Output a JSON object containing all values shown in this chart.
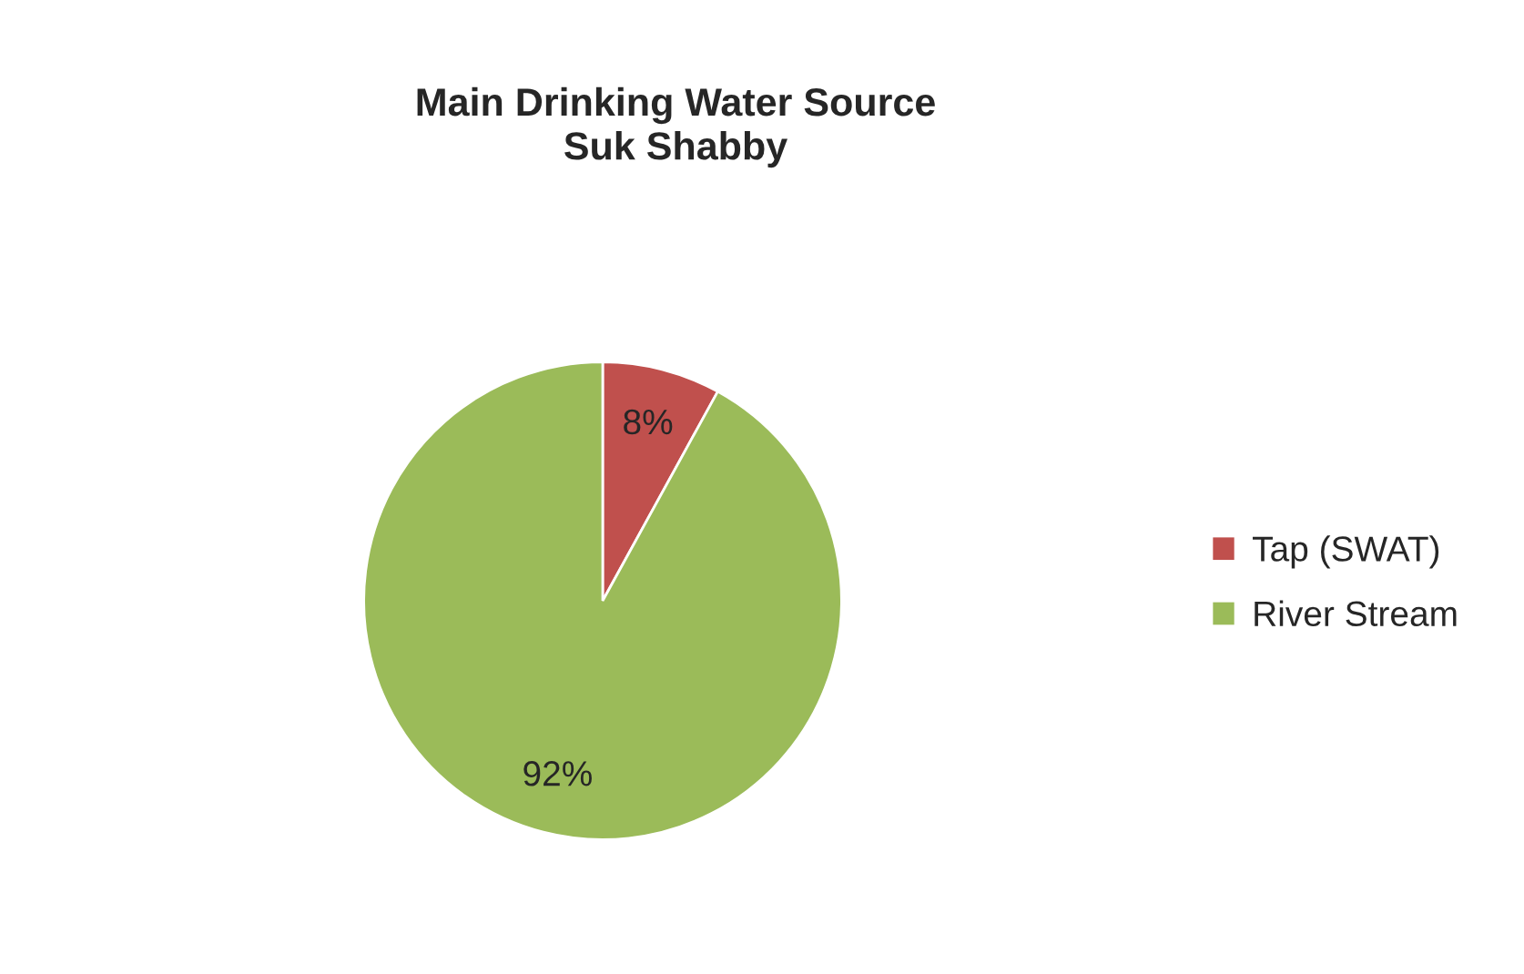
{
  "chart_data": {
    "type": "pie",
    "title": "Main Drinking Water Source\nSuk Shabby",
    "categories": [
      "Tap (SWAT)",
      "River Stream"
    ],
    "values": [
      8,
      92
    ],
    "colors": [
      "#c0504d",
      "#9bbb59"
    ],
    "value_labels": [
      "8%",
      "92%"
    ],
    "legend": "right"
  }
}
